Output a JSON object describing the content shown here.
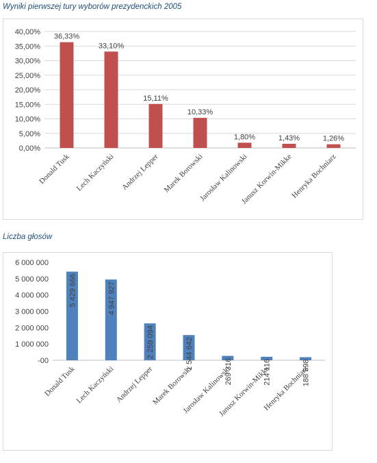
{
  "chart1_title": "Wyniki pierwszej tury wyborów prezydenckich 2005",
  "chart2_title": "Liczba głosów",
  "chart_data": [
    {
      "type": "bar",
      "title": "Wyniki pierwszej tury wyborów prezydenckich 2005",
      "categories": [
        "Donald Tusk",
        "Lech Kaczyński",
        "Andrzej Lepper",
        "Marek Borowski",
        "Jarosław Kalinowski",
        "Janusz Korwin-Mikke",
        "Henryka Bochniarz"
      ],
      "values": [
        36.33,
        33.1,
        15.11,
        10.33,
        1.8,
        1.43,
        1.26
      ],
      "data_labels": [
        "36,33%",
        "33,10%",
        "15,11%",
        "10,33%",
        "1,80%",
        "1,43%",
        "1,26%"
      ],
      "yticks": [
        "0,00%",
        "5,00%",
        "10,00%",
        "15,00%",
        "20,00%",
        "25,00%",
        "30,00%",
        "35,00%",
        "40,00%"
      ],
      "ylim": [
        0,
        40
      ],
      "grid": true,
      "color": "#c0504d"
    },
    {
      "type": "bar",
      "title": "Liczba głosów",
      "categories": [
        "Donald Tusk",
        "Lech Kaczyński",
        "Andrzej Lepper",
        "Marek Borowski",
        "Jarosław Kalinowski",
        "Janusz Korwin-Mikke",
        "Henryka Bochniarz"
      ],
      "values": [
        5429666,
        4947927,
        2259094,
        1544642,
        269316,
        214116,
        188598
      ],
      "data_labels": [
        "5 429 666",
        "4 947 927",
        "2 259 094",
        "1 544 642",
        "269 316",
        "214 116",
        "188 598"
      ],
      "yticks": [
        "-00",
        "1 000 000",
        "2 000 000",
        "3 000 000",
        "4 000 000",
        "5 000 000",
        "6 000 000"
      ],
      "ylim": [
        0,
        6000000
      ],
      "grid": false,
      "color": "#4f81bd"
    }
  ]
}
